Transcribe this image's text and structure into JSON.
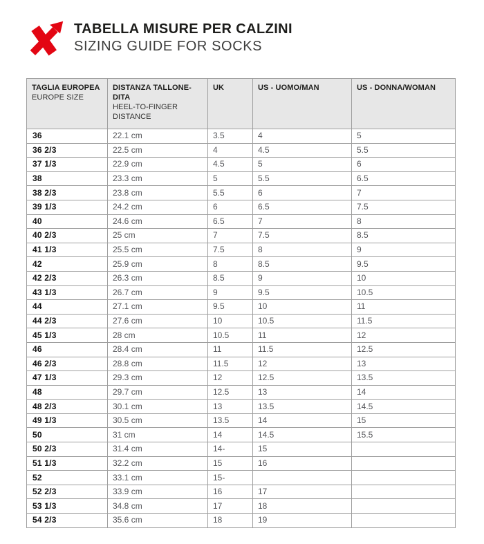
{
  "header": {
    "title": "TABELLA MISURE PER CALZINI",
    "subtitle": "SIZING GUIDE FOR SOCKS",
    "logo_color": "#e30613"
  },
  "colors": {
    "brand_red": "#e30613",
    "table_header_bg": "#e7e7e7",
    "table_border": "#9e9e9e",
    "value_text": "#55565a",
    "size_text": "#111111"
  },
  "table": {
    "columns": [
      {
        "primary": "TAGLIA EUROPEA",
        "secondary": "EUROPE SIZE"
      },
      {
        "primary": "DISTANZA TALLONE-DITA",
        "secondary": "HEEL-TO-FINGER DISTANCE"
      },
      {
        "primary": "UK",
        "secondary": ""
      },
      {
        "primary": "US - UOMO/MAN",
        "secondary": ""
      },
      {
        "primary": "US - DONNA/WOMAN",
        "secondary": ""
      }
    ],
    "rows": [
      [
        "36",
        "22.1 cm",
        "3.5",
        "4",
        "5"
      ],
      [
        "36 2/3",
        "22.5 cm",
        "4",
        "4.5",
        "5.5"
      ],
      [
        "37 1/3",
        "22.9 cm",
        "4.5",
        "5",
        "6"
      ],
      [
        "38",
        "23.3 cm",
        "5",
        "5.5",
        "6.5"
      ],
      [
        "38 2/3",
        "23.8 cm",
        "5.5",
        "6",
        "7"
      ],
      [
        "39 1/3",
        "24.2 cm",
        "6",
        "6.5",
        "7.5"
      ],
      [
        "40",
        "24.6 cm",
        "6.5",
        "7",
        "8"
      ],
      [
        "40 2/3",
        "25 cm",
        "7",
        "7.5",
        "8.5"
      ],
      [
        "41 1/3",
        "25.5 cm",
        "7.5",
        "8",
        "9"
      ],
      [
        "42",
        "25.9 cm",
        "8",
        "8.5",
        "9.5"
      ],
      [
        "42 2/3",
        "26.3 cm",
        "8.5",
        "9",
        "10"
      ],
      [
        "43 1/3",
        "26.7 cm",
        "9",
        "9.5",
        "10.5"
      ],
      [
        "44",
        "27.1 cm",
        "9.5",
        "10",
        "11"
      ],
      [
        "44 2/3",
        "27.6 cm",
        "10",
        "10.5",
        "11.5"
      ],
      [
        "45 1/3",
        "28 cm",
        "10.5",
        "11",
        "12"
      ],
      [
        "46",
        "28.4 cm",
        "11",
        "11.5",
        "12.5"
      ],
      [
        "46 2/3",
        "28.8 cm",
        "11.5",
        "12",
        "13"
      ],
      [
        "47 1/3",
        "29.3 cm",
        "12",
        "12.5",
        "13.5"
      ],
      [
        "48",
        "29.7 cm",
        "12.5",
        "13",
        "14"
      ],
      [
        "48 2/3",
        "30.1 cm",
        "13",
        "13.5",
        "14.5"
      ],
      [
        "49 1/3",
        "30.5 cm",
        "13.5",
        "14",
        "15"
      ],
      [
        "50",
        "31 cm",
        "14",
        "14.5",
        "15.5"
      ],
      [
        "50 2/3",
        "31.4 cm",
        "14-",
        "15",
        ""
      ],
      [
        "51 1/3",
        "32.2 cm",
        "15",
        "16",
        ""
      ],
      [
        "52",
        "33.1 cm",
        "15-",
        "",
        ""
      ],
      [
        "52 2/3",
        "33.9 cm",
        "16",
        "17",
        ""
      ],
      [
        "53 1/3",
        "34.8 cm",
        "17",
        "18",
        ""
      ],
      [
        "54 2/3",
        "35.6 cm",
        "18",
        "19",
        ""
      ]
    ]
  }
}
